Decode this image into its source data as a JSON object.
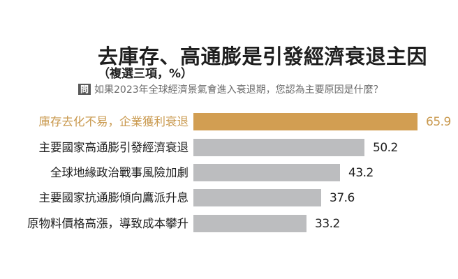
{
  "header": {
    "title": "去庫存、高通膨是引發經濟衰退主因",
    "subtitle": "（複選三項，%）",
    "question_badge": "問",
    "question": "如果2023年全球經濟景氣會進入衰退期，您認為主要原因是什麼？"
  },
  "colors": {
    "highlight_bar": "#d29e52",
    "highlight_text": "#c9994e",
    "default_bar": "#bcbdbf",
    "text": "#1e1e1e",
    "question_text": "#6a6a6a",
    "badge_bg": "#5a5a5a"
  },
  "rows": [
    {
      "label": "庫存去化不易，企業獲利衰退",
      "value": "65.9"
    },
    {
      "label": "主要國家高通膨引發經濟衰退",
      "value": "50.2"
    },
    {
      "label": "全球地緣政治戰事風險加劇",
      "value": "43.2"
    },
    {
      "label": "主要國家抗通膨傾向鷹派升息",
      "value": "37.6"
    },
    {
      "label": "原物料價格高漲，導致成本攀升",
      "value": "33.2"
    }
  ],
  "chart_data": {
    "type": "bar",
    "orientation": "horizontal",
    "title": "去庫存、高通膨是引發經濟衰退主因",
    "subtitle": "（複選三項，%）",
    "question": "如果2023年全球經濟景氣會進入衰退期，您認為主要原因是什麼？",
    "categories": [
      "庫存去化不易，企業獲利衰退",
      "主要國家高通膨引發經濟衰退",
      "全球地緣政治戰事風險加劇",
      "主要國家抗通膨傾向鷹派升息",
      "原物料價格高漲，導致成本攀升"
    ],
    "values": [
      65.9,
      50.2,
      43.2,
      37.6,
      33.2
    ],
    "highlighted_index": 0,
    "xlabel": "",
    "ylabel": "",
    "unit": "%",
    "grid": false,
    "legend": null,
    "data_labels": true
  }
}
